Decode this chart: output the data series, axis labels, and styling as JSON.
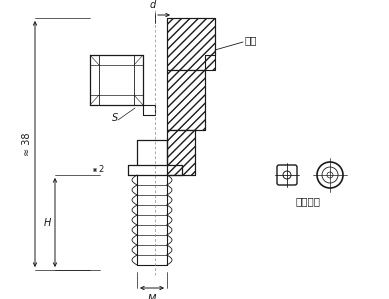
{
  "bg_color": "#ffffff",
  "line_color": "#1a1a1a",
  "labels": {
    "d": "d",
    "kasette": "卡套",
    "S": "S",
    "approx38": "≈ 38",
    "H": "H",
    "M": "M",
    "fixed_kasette": "固定卡套"
  },
  "figsize": [
    3.89,
    2.99
  ],
  "dpi": 100
}
